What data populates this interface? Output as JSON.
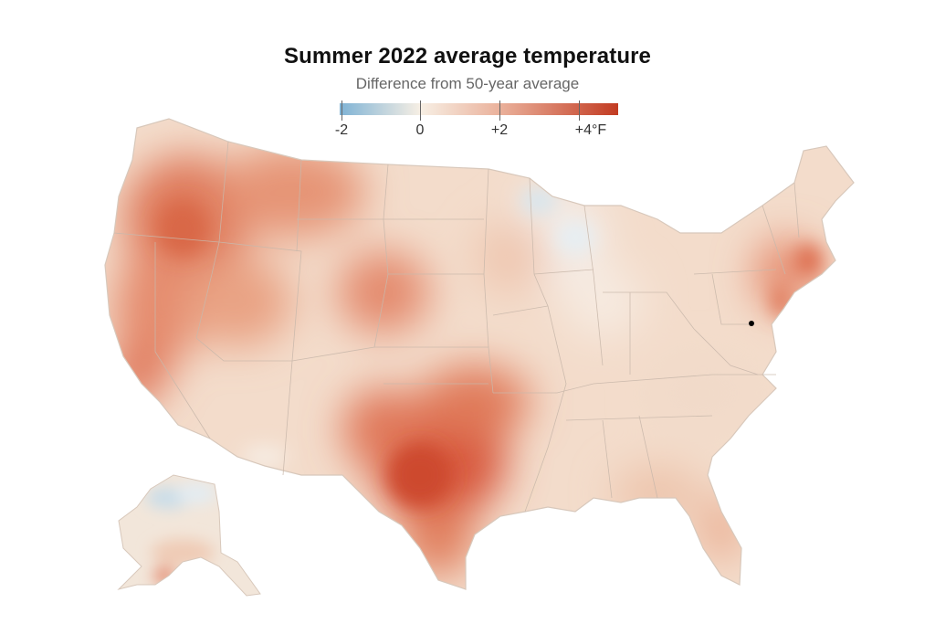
{
  "title": "Summer 2022 average temperature",
  "subtitle": "Difference from 50-year average",
  "legend": {
    "colors": {
      "cold": "#7fb3d5",
      "neutral": "#f7efe4",
      "warm": "#eab09a",
      "hot": "#c23b22"
    },
    "ticks": [
      "-2",
      "0",
      "+2",
      "+4°F"
    ]
  },
  "map": {
    "region": "Contiguous United States and Alaska",
    "marker_color": "#000000",
    "hot_spots": [
      "Texas",
      "Oklahoma",
      "Oregon",
      "Washington",
      "Idaho",
      "Colorado",
      "Nebraska",
      "California coast",
      "Massachusetts",
      "New Jersey"
    ],
    "cool_spots": [
      "Minnesota",
      "Wisconsin",
      "Illinois",
      "Alaska north"
    ]
  }
}
